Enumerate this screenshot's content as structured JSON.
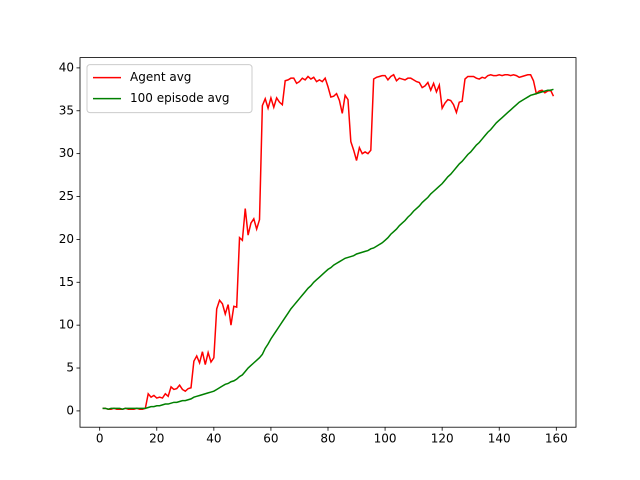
{
  "chart_data": {
    "type": "line",
    "x": [
      1,
      2,
      3,
      4,
      5,
      6,
      7,
      8,
      9,
      10,
      11,
      12,
      13,
      14,
      15,
      16,
      17,
      18,
      19,
      20,
      21,
      22,
      23,
      24,
      25,
      26,
      27,
      28,
      29,
      30,
      31,
      32,
      33,
      34,
      35,
      36,
      37,
      38,
      39,
      40,
      41,
      42,
      43,
      44,
      45,
      46,
      47,
      48,
      49,
      50,
      51,
      52,
      53,
      54,
      55,
      56,
      57,
      58,
      59,
      60,
      61,
      62,
      63,
      64,
      65,
      66,
      67,
      68,
      69,
      70,
      71,
      72,
      73,
      74,
      75,
      76,
      77,
      78,
      79,
      80,
      81,
      82,
      83,
      84,
      85,
      86,
      87,
      88,
      89,
      90,
      91,
      92,
      93,
      94,
      95,
      96,
      97,
      98,
      99,
      100,
      101,
      102,
      103,
      104,
      105,
      106,
      107,
      108,
      109,
      110,
      111,
      112,
      113,
      114,
      115,
      116,
      117,
      118,
      119,
      120,
      121,
      122,
      123,
      124,
      125,
      126,
      127,
      128,
      129,
      130,
      131,
      132,
      133,
      134,
      135,
      136,
      137,
      138,
      139,
      140,
      141,
      142,
      143,
      144,
      145,
      146,
      147,
      148,
      149,
      150,
      151,
      152,
      153,
      154,
      155,
      156,
      157,
      158,
      159
    ],
    "series": [
      {
        "name": "Agent avg",
        "color": "#ff0000",
        "values": [
          0.3,
          0.3,
          0.2,
          0.2,
          0.3,
          0.2,
          0.2,
          0.2,
          0.3,
          0.2,
          0.2,
          0.2,
          0.3,
          0.2,
          0.2,
          0.3,
          2.0,
          1.6,
          1.8,
          1.5,
          1.6,
          1.5,
          2.0,
          1.7,
          2.8,
          2.5,
          2.6,
          3.0,
          2.5,
          2.3,
          2.6,
          2.7,
          5.8,
          6.4,
          5.6,
          6.9,
          5.4,
          6.8,
          5.7,
          6.2,
          11.9,
          12.9,
          12.5,
          11.3,
          12.4,
          10.0,
          12.2,
          12.1,
          20.2,
          19.9,
          23.6,
          20.5,
          21.9,
          22.4,
          21.2,
          22.3,
          35.6,
          36.4,
          35.3,
          36.5,
          35.4,
          36.5,
          36.0,
          35.7,
          38.5,
          38.6,
          38.8,
          38.8,
          38.2,
          38.4,
          38.8,
          38.6,
          39.0,
          38.7,
          38.9,
          38.4,
          38.6,
          38.4,
          38.8,
          37.8,
          36.6,
          36.7,
          37.0,
          36.2,
          34.7,
          36.8,
          36.3,
          31.4,
          30.4,
          29.2,
          30.7,
          30.0,
          30.2,
          30.0,
          30.4,
          38.7,
          38.9,
          39.0,
          39.1,
          39.1,
          38.6,
          39.0,
          39.2,
          38.5,
          38.8,
          38.7,
          38.6,
          38.8,
          38.8,
          38.6,
          38.4,
          38.3,
          37.7,
          37.9,
          38.3,
          37.4,
          38.2,
          37.2,
          38.0,
          35.3,
          35.9,
          36.3,
          36.2,
          35.7,
          34.8,
          36.0,
          36.1,
          38.7,
          39.0,
          39.0,
          39.0,
          38.8,
          38.7,
          38.9,
          38.8,
          39.1,
          39.2,
          39.1,
          39.1,
          39.2,
          39.1,
          39.2,
          39.2,
          39.1,
          39.2,
          39.1,
          38.9,
          39.0,
          39.1,
          39.2,
          39.2,
          38.5,
          37.0,
          37.3,
          37.4,
          37.1,
          37.3,
          37.4,
          36.7
        ]
      },
      {
        "name": "100 episode avg",
        "color": "#008000",
        "values": [
          0.3,
          0.3,
          0.2,
          0.3,
          0.3,
          0.3,
          0.3,
          0.2,
          0.3,
          0.3,
          0.3,
          0.3,
          0.3,
          0.3,
          0.3,
          0.3,
          0.4,
          0.5,
          0.5,
          0.6,
          0.6,
          0.7,
          0.8,
          0.8,
          0.9,
          1.0,
          1.0,
          1.1,
          1.2,
          1.2,
          1.3,
          1.4,
          1.6,
          1.7,
          1.8,
          1.9,
          2.0,
          2.1,
          2.2,
          2.3,
          2.5,
          2.7,
          2.9,
          3.1,
          3.2,
          3.4,
          3.5,
          3.7,
          4.0,
          4.2,
          4.6,
          5.0,
          5.3,
          5.6,
          5.9,
          6.2,
          6.6,
          7.3,
          7.8,
          8.4,
          8.9,
          9.4,
          9.9,
          10.4,
          10.9,
          11.4,
          11.9,
          12.3,
          12.7,
          13.1,
          13.5,
          13.9,
          14.3,
          14.6,
          15.0,
          15.3,
          15.6,
          15.9,
          16.2,
          16.5,
          16.7,
          17.0,
          17.2,
          17.4,
          17.6,
          17.8,
          17.9,
          18.0,
          18.1,
          18.3,
          18.4,
          18.5,
          18.6,
          18.7,
          18.9,
          19.0,
          19.2,
          19.4,
          19.6,
          19.9,
          20.2,
          20.6,
          20.9,
          21.2,
          21.6,
          21.9,
          22.2,
          22.6,
          22.9,
          23.3,
          23.6,
          23.9,
          24.3,
          24.6,
          24.9,
          25.3,
          25.6,
          25.9,
          26.2,
          26.5,
          26.9,
          27.3,
          27.6,
          28.0,
          28.4,
          28.8,
          29.1,
          29.5,
          29.9,
          30.2,
          30.6,
          31.0,
          31.3,
          31.7,
          32.1,
          32.5,
          32.8,
          33.2,
          33.6,
          33.9,
          34.2,
          34.5,
          34.8,
          35.1,
          35.4,
          35.7,
          36.0,
          36.2,
          36.4,
          36.6,
          36.8,
          36.9,
          37.0,
          37.1,
          37.2,
          37.3,
          37.4,
          37.4,
          37.5
        ]
      }
    ],
    "xlim": [
      -6.9,
      166.9
    ],
    "ylim": [
      -1.9,
      41.2
    ],
    "xticks": [
      0,
      20,
      40,
      60,
      80,
      100,
      120,
      140,
      160
    ],
    "yticks": [
      0,
      5,
      10,
      15,
      20,
      25,
      30,
      35,
      40
    ],
    "legend": "upper left"
  }
}
